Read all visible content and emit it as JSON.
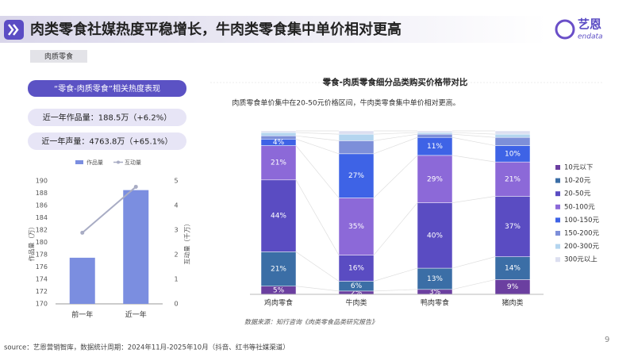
{
  "header": {
    "title": "肉类零食社媒热度平稳增长，牛肉类零食集中单价相对更高",
    "logo_text": "艺恩",
    "logo_sub": "endata"
  },
  "tag": "肉质零食",
  "panel": {
    "title": "“零食-肉质零食”相关热度表现",
    "stats": [
      "近一年作品量：188.5万（+6.2%）",
      "近一年声量：4763.8万（+65.1%）"
    ]
  },
  "chart_data": [
    {
      "type": "combo",
      "categories": [
        "前一年",
        "近一年"
      ],
      "series": [
        {
          "name": "作品量",
          "kind": "bar",
          "color": "#7b8ee0",
          "values": [
            177.5,
            188.5
          ]
        },
        {
          "name": "互动量",
          "kind": "line",
          "axis": "y2",
          "color": "#a8acc4",
          "values": [
            2.89,
            4.76
          ]
        }
      ],
      "ylabel": "作品量（万）",
      "y2label": "互动量（千万）",
      "ylim": [
        170,
        190
      ],
      "yticks": [
        170,
        172,
        174,
        176,
        178,
        180,
        182,
        184,
        186,
        188,
        190
      ],
      "y2lim": [
        0,
        5
      ],
      "y2ticks": [
        0,
        1,
        2,
        3,
        4,
        5
      ]
    },
    {
      "type": "stacked_bar",
      "title": "零食-肉质零食细分品类购买价格带对比",
      "subtitle": "肉质零食单价集中在20-50元价格区间，牛肉类零食集中单价相对更高。",
      "categories": [
        "鸡肉零食",
        "牛肉类",
        "鸭肉零食",
        "猪肉类"
      ],
      "series": [
        {
          "name": "10元以下",
          "color": "#6b3fa0",
          "values": [
            5,
            2,
            3,
            9
          ],
          "value_labels": [
            "5%",
            "2%",
            "3%",
            "9%"
          ]
        },
        {
          "name": "10-20元",
          "color": "#3b6ea6",
          "values": [
            21,
            6,
            13,
            14
          ],
          "value_labels": [
            "21%",
            "6%",
            "13%",
            "14%"
          ]
        },
        {
          "name": "20-50元",
          "color": "#5a4cc2",
          "values": [
            44,
            16,
            40,
            37
          ],
          "value_labels": [
            "44%",
            "16%",
            "40%",
            "37%"
          ]
        },
        {
          "name": "50-100元",
          "color": "#8c69d8",
          "values": [
            21,
            35,
            29,
            21
          ],
          "value_labels": [
            "21%",
            "35%",
            "29%",
            "21%"
          ]
        },
        {
          "name": "100-150元",
          "color": "#3e63e6",
          "values": [
            4,
            27,
            11,
            10
          ],
          "value_labels": [
            "4%",
            "27%",
            "11%",
            "10%"
          ]
        },
        {
          "name": "150-200元",
          "color": "#7d8fd9",
          "values": [
            2,
            8,
            2,
            5
          ],
          "value_labels": [
            null,
            null,
            null,
            null
          ]
        },
        {
          "name": "200-300元",
          "color": "#b4d5ef",
          "values": [
            2,
            4,
            1,
            2
          ],
          "value_labels": [
            null,
            null,
            null,
            null
          ]
        },
        {
          "name": "300元以上",
          "color": "#dcdff0",
          "values": [
            1,
            2,
            1,
            2
          ],
          "value_labels": [
            null,
            null,
            null,
            null
          ]
        }
      ]
    }
  ],
  "source_note": "数据来源：知行咨询《肉类零食品类研究报告》",
  "footer": "source：艺恩营销智库，数据统计周期：2024年11月-2025年10月（抖音、红书等社媒渠道）",
  "page_number": "9"
}
